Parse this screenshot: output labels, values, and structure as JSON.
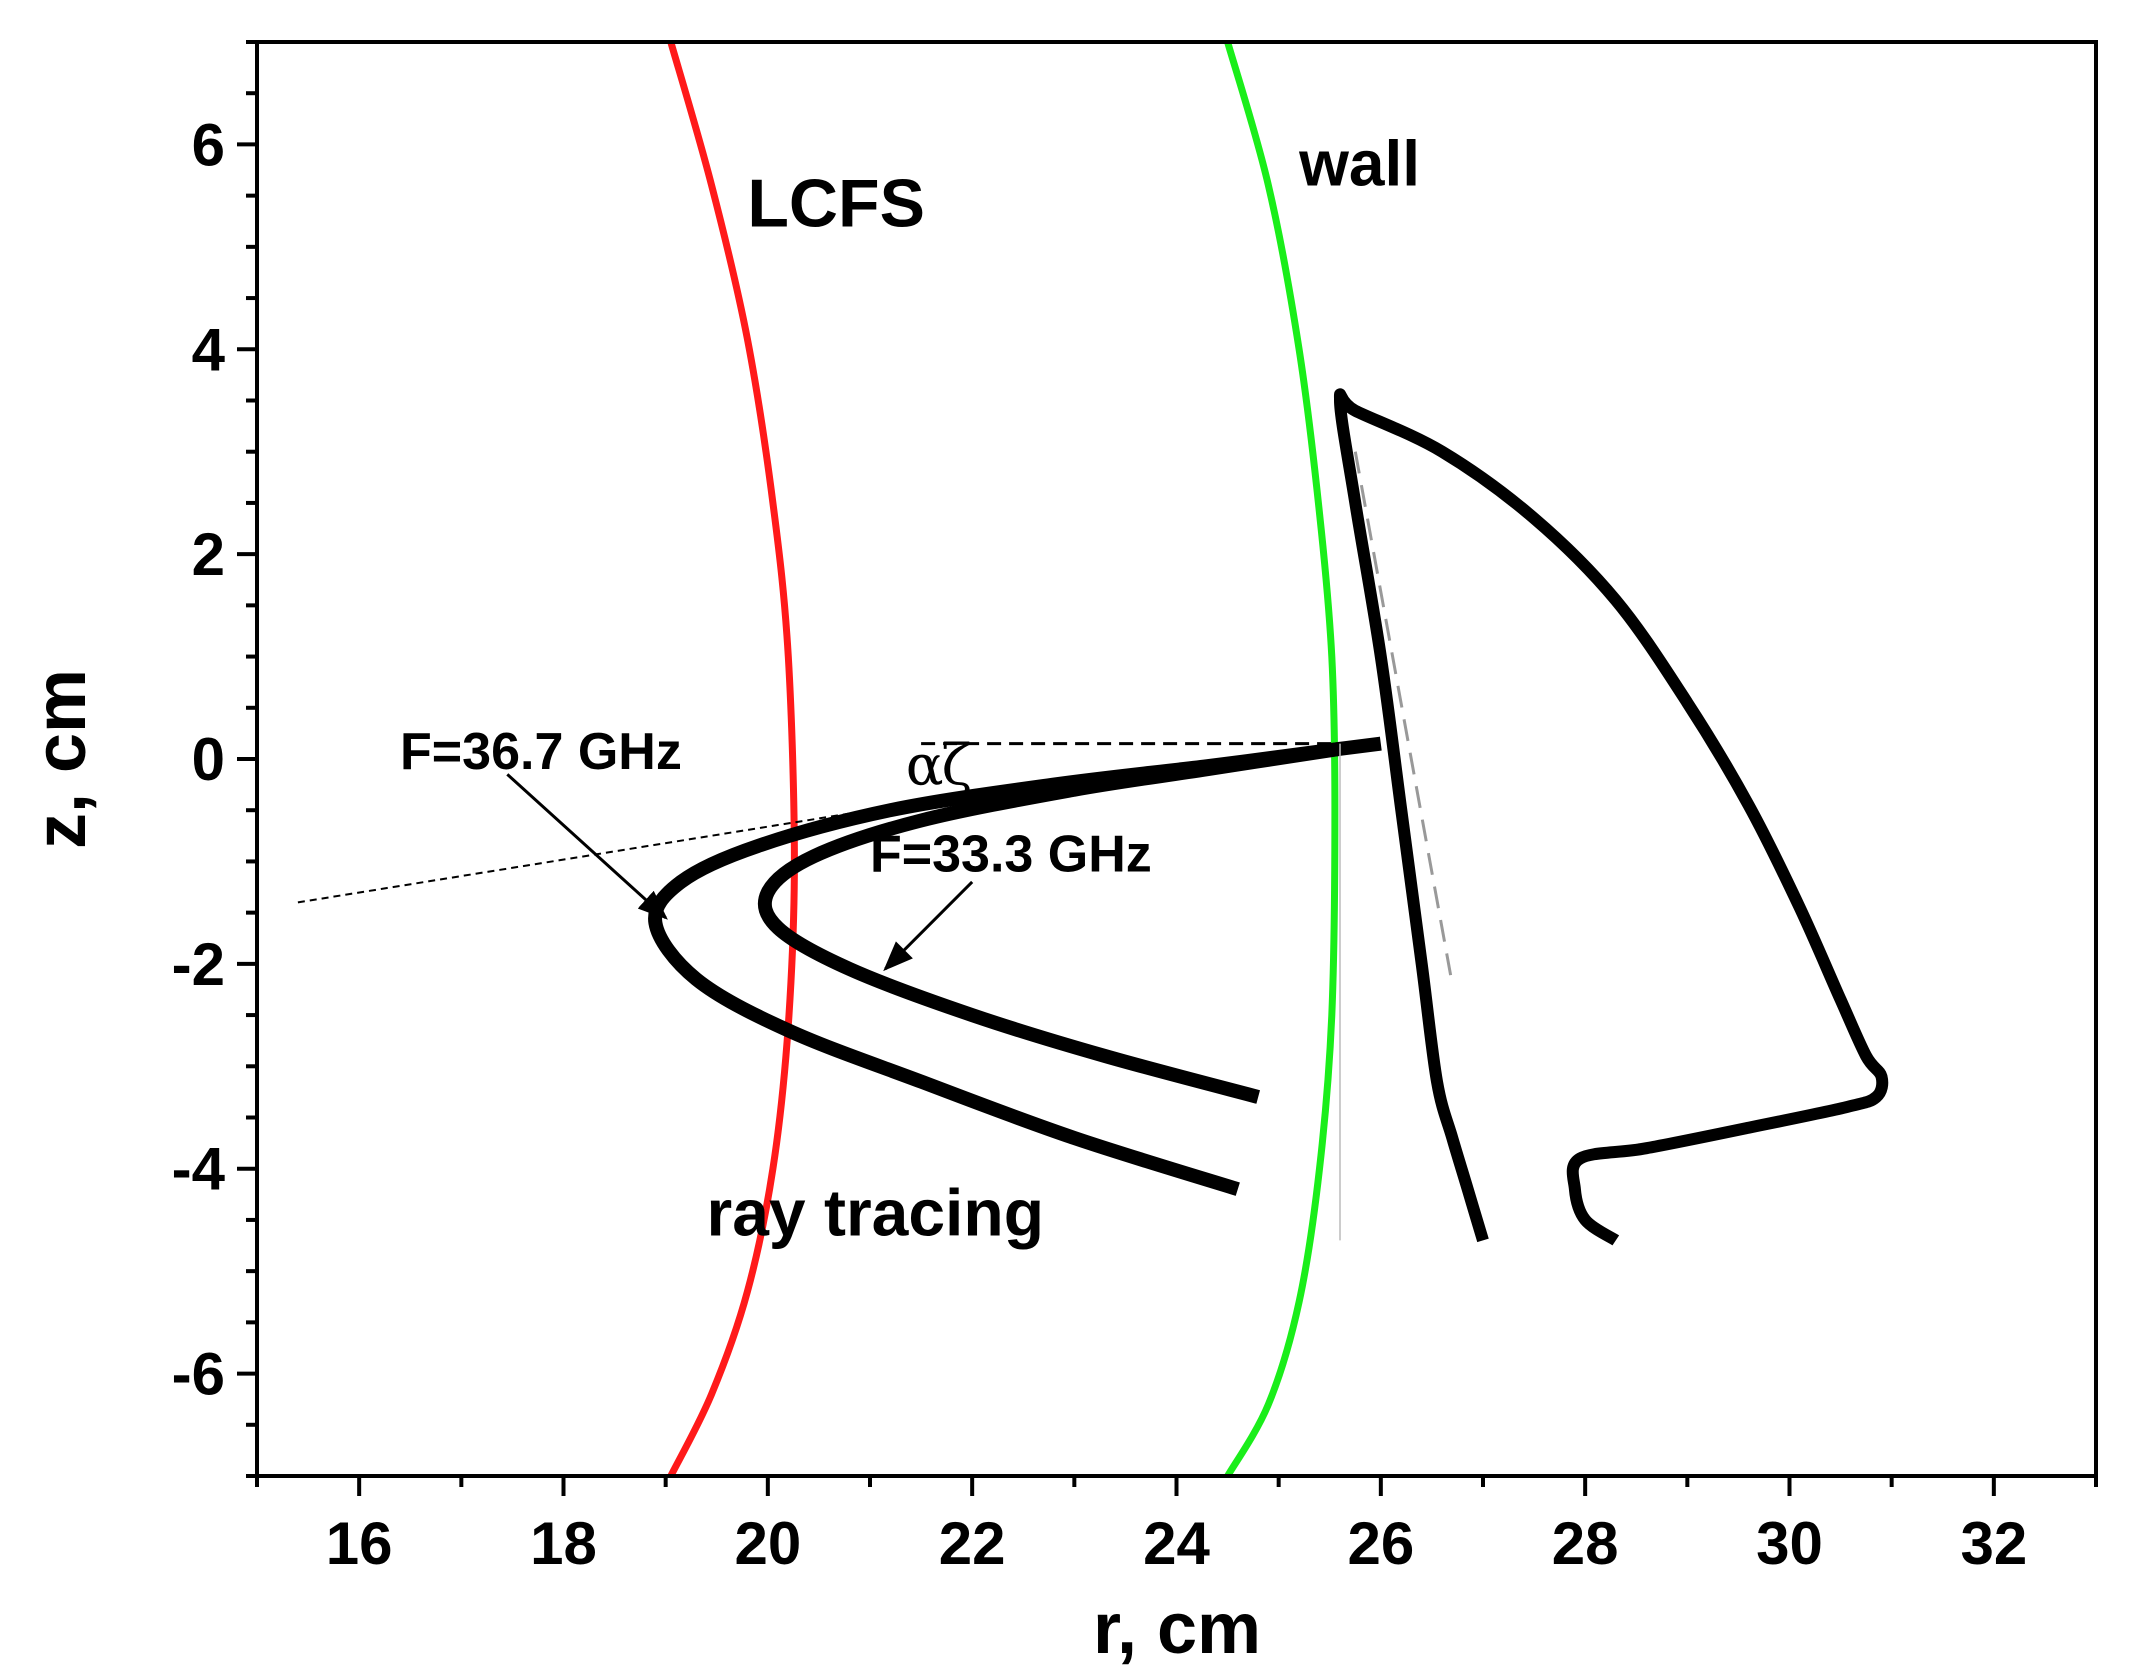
{
  "chart_data": {
    "type": "line",
    "title": "",
    "xlabel": "r, cm",
    "ylabel": "z, cm",
    "xlim": [
      15,
      33
    ],
    "ylim": [
      -7,
      7
    ],
    "x_ticks": [
      16,
      18,
      20,
      22,
      24,
      26,
      28,
      30,
      32
    ],
    "y_ticks": [
      6,
      4,
      2,
      0,
      -2,
      -4,
      -6
    ],
    "x_tick_labels": [
      "16",
      "18",
      "20",
      "22",
      "24",
      "26",
      "28",
      "30",
      "32"
    ],
    "y_tick_labels": [
      "6",
      "4",
      "2",
      "0",
      "-2",
      "-4",
      "-6"
    ],
    "grid": false,
    "colors": {
      "lcfs": "#ff1a1a",
      "wall": "#1aee1a",
      "ray": "#000000",
      "antenna": "#000000",
      "antenna_dashed": "#999999"
    },
    "series": [
      {
        "name": "LCFS",
        "color": "#ff1a1a",
        "x": [
          19.05,
          19.45,
          19.8,
          20.05,
          20.2,
          20.26,
          20.2,
          20.05,
          19.8,
          19.45,
          19.05
        ],
        "y": [
          7,
          5.6,
          4.1,
          2.5,
          1.0,
          -1.0,
          -2.6,
          -4.0,
          -5.2,
          -6.2,
          -7
        ]
      },
      {
        "name": "wall",
        "color": "#1aee1a",
        "x": [
          24.5,
          24.9,
          25.2,
          25.4,
          25.52,
          25.55,
          25.52,
          25.4,
          25.2,
          24.9,
          24.5
        ],
        "y": [
          7,
          5.6,
          4.0,
          2.4,
          1.0,
          -0.5,
          -2.5,
          -4.0,
          -5.3,
          -6.3,
          -7
        ]
      },
      {
        "name": "F=36.7 GHz",
        "color": "#000000",
        "x": [
          24.6,
          23.0,
          21.5,
          20.2,
          19.3,
          18.9,
          19.15,
          19.9,
          21.2,
          22.8,
          24.3,
          25.6,
          26.0
        ],
        "y": [
          -4.2,
          -3.7,
          -3.15,
          -2.65,
          -2.15,
          -1.6,
          -1.2,
          -0.85,
          -0.5,
          -0.25,
          -0.07,
          0.1,
          0.15
        ]
      },
      {
        "name": "F=33.3 GHz",
        "color": "#000000",
        "x": [
          24.8,
          23.3,
          22.0,
          20.8,
          20.1,
          20.0,
          20.45,
          21.5,
          23.0,
          24.3,
          25.6
        ],
        "y": [
          -3.3,
          -2.9,
          -2.5,
          -2.05,
          -1.65,
          -1.3,
          -0.95,
          -0.6,
          -0.3,
          -0.1,
          0.1
        ]
      },
      {
        "name": "antenna outline",
        "color": "#000000",
        "x": [
          27.0,
          26.85,
          26.7,
          26.55,
          26.4,
          26.2,
          26.0,
          25.75,
          25.6,
          25.75,
          26.6,
          27.5,
          28.3,
          29.0,
          29.6,
          30.1,
          30.5,
          30.75,
          30.9,
          30.85,
          30.55,
          29.6,
          28.6,
          27.95,
          27.9,
          28.0,
          28.3
        ],
        "y": [
          -4.7,
          -4.2,
          -3.7,
          -3.15,
          -2.0,
          -0.5,
          1.0,
          2.5,
          3.5,
          3.4,
          3.0,
          2.35,
          1.55,
          0.55,
          -0.45,
          -1.45,
          -2.35,
          -2.9,
          -3.1,
          -3.3,
          -3.4,
          -3.6,
          -3.8,
          -3.9,
          -4.2,
          -4.5,
          -4.7
        ]
      }
    ],
    "reference_lines": [
      {
        "name": "normal",
        "style": "dashed",
        "x": [
          21.5,
          25.6
        ],
        "y": [
          0.15,
          0.15
        ]
      },
      {
        "name": "ray asymptote",
        "style": "dotted",
        "x": [
          15.4,
          21.0
        ],
        "y": [
          -1.4,
          -0.5
        ]
      },
      {
        "name": "wall boundary",
        "style": "thin",
        "x": [
          25.6,
          25.6
        ],
        "y": [
          0.15,
          -4.7
        ]
      }
    ],
    "annotations": [
      {
        "text": "LCFS",
        "x": 19.8,
        "y": 5.2
      },
      {
        "text": "wall",
        "x": 25.2,
        "y": 5.6
      },
      {
        "text": "F=36.7 GHz",
        "x": 16.4,
        "y": -0.1
      },
      {
        "text": "F=33.3 GHz",
        "x": 21.0,
        "y": -1.1
      },
      {
        "text": "ray tracing",
        "x": 19.4,
        "y": -4.65
      },
      {
        "text": "α",
        "x": 21.35,
        "y": -0.25
      },
      {
        "text": "ζ",
        "x": 21.7,
        "y": -0.25
      }
    ],
    "arrows": [
      {
        "from": [
          17.45,
          -0.15
        ],
        "to": [
          19.0,
          -1.55
        ]
      },
      {
        "from": [
          22.0,
          -1.2
        ],
        "to": [
          21.15,
          -2.05
        ]
      }
    ]
  }
}
